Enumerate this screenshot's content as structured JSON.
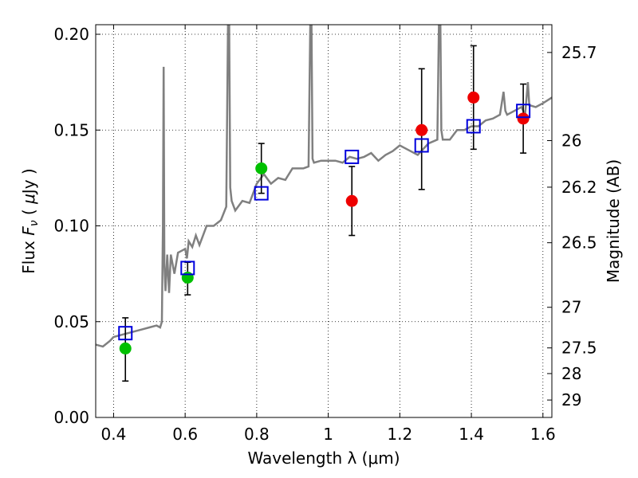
{
  "chart_data": {
    "type": "scatter",
    "xlabel": "Wavelength  λ (μm)",
    "ylabel": "Flux  F_ν  ( μJy )",
    "ylabel_parts": {
      "pre": "Flux  ",
      "sym": "F",
      "sub": "ν",
      "post": "  ( ",
      "mu": "μ",
      "unit": "Jy )"
    },
    "y2label": "Magnitude (AB)",
    "xlim": [
      0.35,
      1.625
    ],
    "ylim": [
      0.0,
      0.205
    ],
    "x_ticks": [
      0.4,
      0.6,
      0.8,
      1.0,
      1.2,
      1.4,
      1.6
    ],
    "x_tick_labels": [
      "0.4",
      "0.6",
      "0.8",
      "1",
      "1.2",
      "1.4",
      "1.6"
    ],
    "y_ticks": [
      0.0,
      0.05,
      0.1,
      0.15,
      0.2
    ],
    "y_tick_labels": [
      "0.00",
      "0.05",
      "0.10",
      "0.15",
      "0.20"
    ],
    "mag_ticks": [
      {
        "label": "25.7",
        "flux": 0.1905
      },
      {
        "label": "26",
        "flux": 0.1445
      },
      {
        "label": "26.2",
        "flux": 0.1202
      },
      {
        "label": "26.5",
        "flux": 0.0912
      },
      {
        "label": "27",
        "flux": 0.0575
      },
      {
        "label": "27.5",
        "flux": 0.0363
      },
      {
        "label": "28",
        "flux": 0.0229
      },
      {
        "label": "29",
        "flux": 0.0091
      }
    ],
    "grid": true,
    "series": [
      {
        "kind": "line",
        "color": "#808080",
        "x": [
          0.35,
          0.37,
          0.39,
          0.4,
          0.42,
          0.44,
          0.46,
          0.48,
          0.5,
          0.52,
          0.53,
          0.535,
          0.538,
          0.54,
          0.542,
          0.545,
          0.55,
          0.555,
          0.56,
          0.57,
          0.58,
          0.59,
          0.6,
          0.605,
          0.61,
          0.62,
          0.63,
          0.64,
          0.66,
          0.68,
          0.7,
          0.715,
          0.72,
          0.723,
          0.726,
          0.73,
          0.74,
          0.76,
          0.78,
          0.8,
          0.82,
          0.84,
          0.86,
          0.88,
          0.9,
          0.93,
          0.945,
          0.95,
          0.953,
          0.956,
          0.96,
          0.98,
          1.0,
          1.02,
          1.04,
          1.06,
          1.08,
          1.1,
          1.12,
          1.14,
          1.16,
          1.18,
          1.2,
          1.22,
          1.25,
          1.28,
          1.305,
          1.31,
          1.313,
          1.316,
          1.32,
          1.34,
          1.36,
          1.38,
          1.4,
          1.42,
          1.44,
          1.46,
          1.48,
          1.49,
          1.495,
          1.5,
          1.52,
          1.54,
          1.55,
          1.558,
          1.562,
          1.58,
          1.6,
          1.625
        ],
        "y": [
          0.038,
          0.037,
          0.04,
          0.042,
          0.043,
          0.044,
          0.045,
          0.046,
          0.047,
          0.048,
          0.047,
          0.05,
          0.1,
          0.183,
          0.08,
          0.066,
          0.085,
          0.065,
          0.085,
          0.075,
          0.086,
          0.087,
          0.088,
          0.083,
          0.092,
          0.089,
          0.095,
          0.09,
          0.1,
          0.1,
          0.103,
          0.11,
          0.21,
          0.21,
          0.12,
          0.113,
          0.108,
          0.113,
          0.112,
          0.122,
          0.127,
          0.122,
          0.125,
          0.124,
          0.13,
          0.13,
          0.131,
          0.21,
          0.21,
          0.135,
          0.133,
          0.134,
          0.134,
          0.134,
          0.133,
          0.136,
          0.135,
          0.136,
          0.138,
          0.134,
          0.137,
          0.139,
          0.142,
          0.14,
          0.137,
          0.143,
          0.145,
          0.215,
          0.215,
          0.15,
          0.145,
          0.145,
          0.15,
          0.15,
          0.152,
          0.152,
          0.155,
          0.156,
          0.158,
          0.17,
          0.16,
          0.158,
          0.16,
          0.162,
          0.158,
          0.175,
          0.163,
          0.162,
          0.164,
          0.167
        ]
      },
      {
        "kind": "errorbar",
        "name": "",
        "color": "#000000",
        "x": [
          0.433,
          0.607,
          0.813,
          1.066,
          1.261,
          1.406,
          1.545
        ],
        "y": [
          0.036,
          0.073,
          0.13,
          0.113,
          0.15,
          0.167,
          0.156
        ],
        "yerr_low": [
          0.019,
          0.064,
          0.117,
          0.095,
          0.119,
          0.14,
          0.138
        ],
        "yerr_high": [
          0.052,
          0.081,
          0.143,
          0.131,
          0.182,
          0.194,
          0.174
        ]
      },
      {
        "kind": "marker-circle",
        "colors": [
          "#00c000",
          "#00c000",
          "#00c000",
          "#ee0000",
          "#ee0000",
          "#ee0000",
          "#ee0000"
        ],
        "x": [
          0.433,
          0.607,
          0.813,
          1.066,
          1.261,
          1.406,
          1.545
        ],
        "y": [
          0.036,
          0.073,
          0.13,
          0.113,
          0.15,
          0.167,
          0.156
        ]
      },
      {
        "kind": "marker-square-open",
        "color": "#0000dd",
        "x": [
          0.433,
          0.607,
          0.813,
          1.066,
          1.261,
          1.406,
          1.545
        ],
        "y": [
          0.044,
          0.078,
          0.117,
          0.136,
          0.142,
          0.152,
          0.16
        ]
      }
    ]
  }
}
